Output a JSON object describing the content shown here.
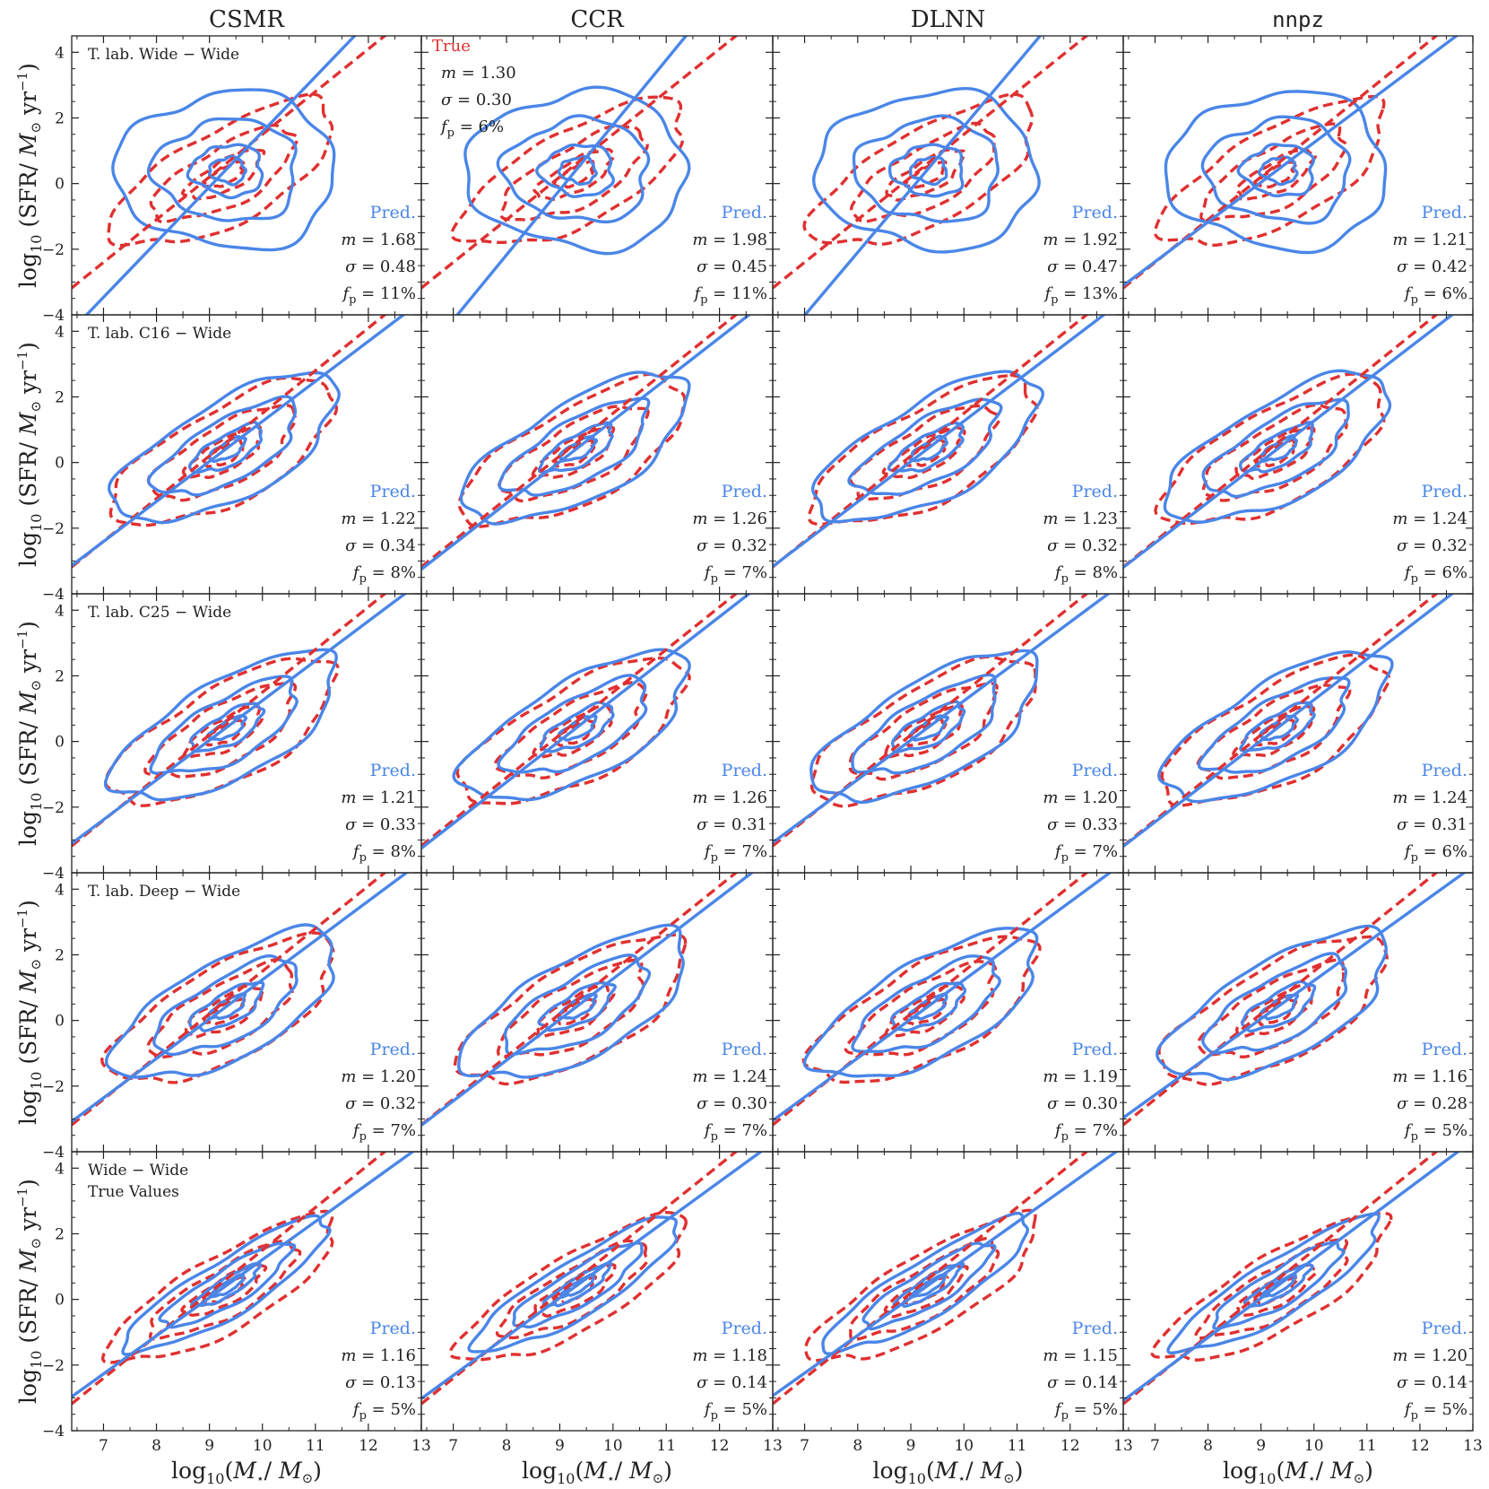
{
  "colors": {
    "true": "#e03030",
    "pred": "#4a86e8",
    "axis": "#222222"
  },
  "chart_data": {
    "type": "contour-grid",
    "columns": [
      "CSMR",
      "CCR",
      "DLNN",
      "nnpz"
    ],
    "rows": [
      [
        "T. lab. Wide",
        "− Wide"
      ],
      [
        "T. lab. C16",
        "− Wide"
      ],
      [
        "T. lab. C25",
        "− Wide"
      ],
      [
        "T. lab. Deep",
        "− Wide"
      ],
      [
        "Wide − Wide",
        "True Values"
      ]
    ],
    "xlabel": "log10(M⋆/ M⊙)",
    "ylabel": "log10 (SFR/ M⊙ yr−1)",
    "xlim": [
      6.4,
      13
    ],
    "ylim": [
      -4,
      4.5
    ],
    "xticks": [
      7,
      8,
      9,
      10,
      11,
      12,
      13
    ],
    "yticks": [
      -4,
      -2,
      0,
      2,
      4
    ],
    "true_legend": {
      "label": "True",
      "m": "1.30",
      "sigma": "0.30",
      "fp": "6%"
    },
    "true_fit": {
      "m": 1.3,
      "intercept": -11.5
    },
    "pred_label": "Pred.",
    "panels": [
      [
        {
          "m": "1.68",
          "sigma": "0.48",
          "fp": "11%"
        },
        {
          "m": "1.98",
          "sigma": "0.45",
          "fp": "11%"
        },
        {
          "m": "1.92",
          "sigma": "0.47",
          "fp": "13%"
        },
        {
          "m": "1.21",
          "sigma": "0.42",
          "fp": "6%"
        }
      ],
      [
        {
          "m": "1.22",
          "sigma": "0.34",
          "fp": "8%"
        },
        {
          "m": "1.26",
          "sigma": "0.32",
          "fp": "7%"
        },
        {
          "m": "1.23",
          "sigma": "0.32",
          "fp": "8%"
        },
        {
          "m": "1.24",
          "sigma": "0.32",
          "fp": "6%"
        }
      ],
      [
        {
          "m": "1.21",
          "sigma": "0.33",
          "fp": "8%"
        },
        {
          "m": "1.26",
          "sigma": "0.31",
          "fp": "7%"
        },
        {
          "m": "1.20",
          "sigma": "0.33",
          "fp": "7%"
        },
        {
          "m": "1.24",
          "sigma": "0.31",
          "fp": "6%"
        }
      ],
      [
        {
          "m": "1.20",
          "sigma": "0.32",
          "fp": "7%"
        },
        {
          "m": "1.24",
          "sigma": "0.30",
          "fp": "7%"
        },
        {
          "m": "1.19",
          "sigma": "0.30",
          "fp": "7%"
        },
        {
          "m": "1.16",
          "sigma": "0.28",
          "fp": "5%"
        }
      ],
      [
        {
          "m": "1.16",
          "sigma": "0.13",
          "fp": "5%"
        },
        {
          "m": "1.18",
          "sigma": "0.14",
          "fp": "5%"
        },
        {
          "m": "1.15",
          "sigma": "0.14",
          "fp": "5%"
        },
        {
          "m": "1.20",
          "sigma": "0.14",
          "fp": "5%"
        }
      ]
    ]
  }
}
